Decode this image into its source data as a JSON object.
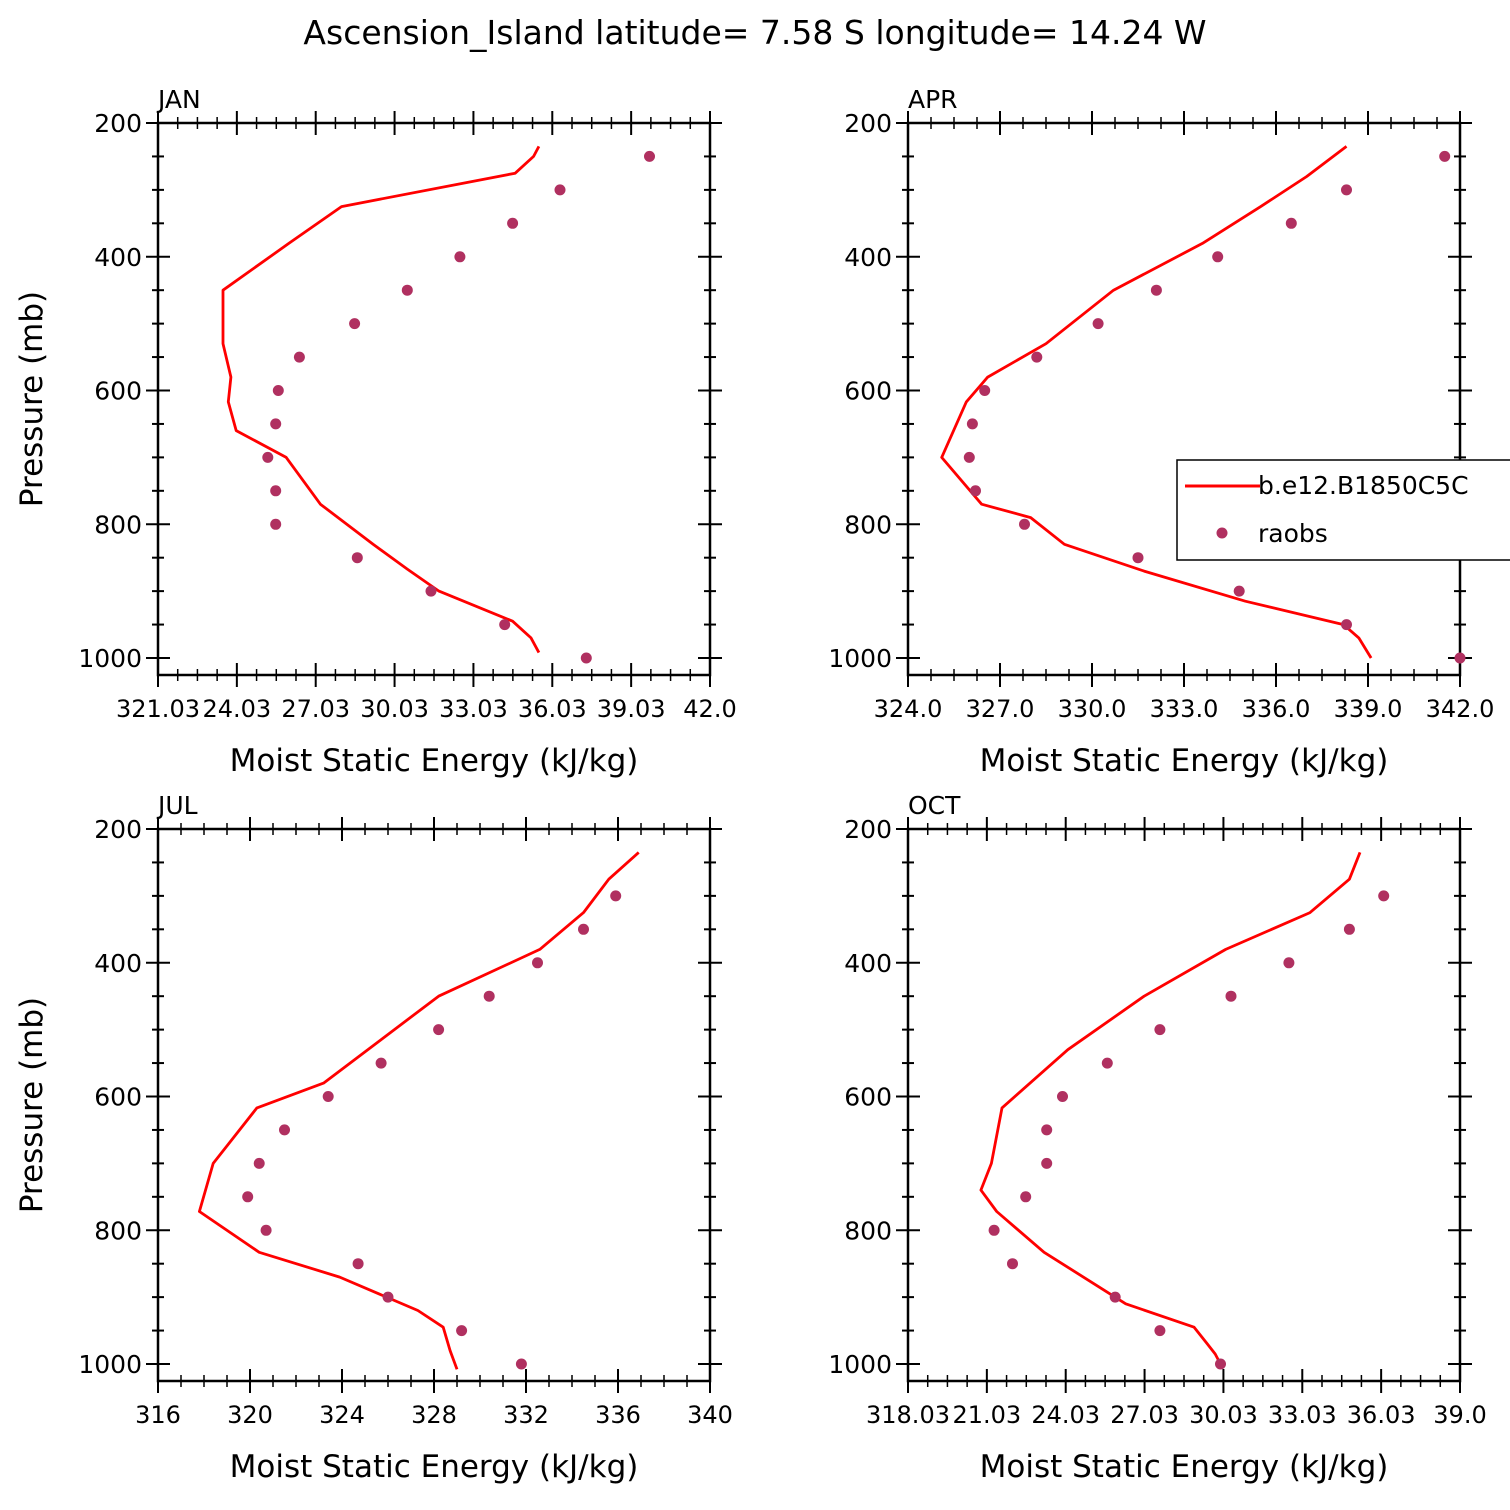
{
  "figure": {
    "title": "Ascension_Island  latitude= 7.58 S longitude= 14.24 W"
  },
  "legend": {
    "model_label": "b.e12.B1850C5C",
    "obs_label": "raobs",
    "model_color": "#ff0000",
    "obs_color": "#b03060"
  },
  "chart_data": [
    {
      "type": "line",
      "panel": "JAN",
      "title": "JAN",
      "xlabel": "Moist Static Energy (kJ/kg)",
      "ylabel": "Pressure (mb)",
      "xlim": [
        321.03,
        342.0
      ],
      "ylim": [
        1000,
        200
      ],
      "xticks": [
        321.03,
        324.03,
        327.03,
        330.03,
        333.03,
        336.03,
        339.03,
        342.0
      ],
      "xtick_labels": [
        "321.03",
        "24.03",
        "27.03",
        "30.03",
        "33.03",
        "36.03",
        "39.03",
        "42.0"
      ],
      "yticks": [
        200,
        400,
        600,
        800,
        1000
      ],
      "series": [
        {
          "name": "b.e12.B1850C5C",
          "kind": "line",
          "x": [
            335.5,
            335.2,
            334.5,
            331.7,
            330.5,
            329.2,
            327.2,
            325.9,
            324.0,
            323.7,
            323.8,
            323.5,
            323.5,
            326.0,
            328.0,
            334.6,
            335.3,
            335.5
          ],
          "y": [
            992,
            970,
            945,
            900,
            867,
            830,
            770,
            700,
            660,
            617,
            580,
            530,
            450,
            380,
            325,
            275,
            250,
            235
          ]
        },
        {
          "name": "raobs",
          "kind": "scatter",
          "x": [
            337.3,
            334.2,
            331.4,
            328.6,
            325.5,
            325.5,
            325.2,
            325.5,
            325.6,
            326.4,
            328.5,
            330.5,
            332.5,
            334.5,
            336.3,
            339.7
          ],
          "y": [
            1000,
            950,
            900,
            850,
            800,
            750,
            700,
            650,
            600,
            550,
            500,
            450,
            400,
            350,
            300,
            250
          ]
        }
      ]
    },
    {
      "type": "line",
      "panel": "APR",
      "title": "APR",
      "xlabel": "Moist Static Energy (kJ/kg)",
      "ylabel": "",
      "xlim": [
        324.0,
        342.0
      ],
      "ylim": [
        1000,
        200
      ],
      "xticks": [
        324.0,
        327.0,
        330.0,
        333.0,
        336.0,
        339.0,
        342.0
      ],
      "xtick_labels": [
        "324.0",
        "327.0",
        "330.0",
        "333.0",
        "336.0",
        "339.0",
        "342.0"
      ],
      "yticks": [
        200,
        400,
        600,
        800,
        1000
      ],
      "series": [
        {
          "name": "b.e12.B1850C5C",
          "kind": "line",
          "x": [
            339.1,
            338.7,
            338.2,
            335.0,
            331.7,
            329.1,
            328.0,
            326.4,
            325.1,
            325.9,
            326.6,
            328.5,
            330.7,
            333.6,
            335.5,
            337.0,
            338.3
          ],
          "y": [
            1000,
            970,
            950,
            915,
            870,
            830,
            790,
            770,
            700,
            617,
            580,
            530,
            450,
            380,
            325,
            280,
            235
          ]
        },
        {
          "name": "raobs",
          "kind": "scatter",
          "x": [
            342.0,
            338.3,
            334.8,
            331.5,
            327.8,
            326.2,
            326.0,
            326.1,
            326.5,
            328.2,
            330.2,
            332.1,
            334.1,
            336.5,
            338.3,
            341.5
          ],
          "y": [
            1000,
            950,
            900,
            850,
            800,
            750,
            700,
            650,
            600,
            550,
            500,
            450,
            400,
            350,
            300,
            250
          ]
        }
      ]
    },
    {
      "type": "line",
      "panel": "JUL",
      "title": "JUL",
      "xlabel": "Moist Static Energy (kJ/kg)",
      "ylabel": "Pressure (mb)",
      "xlim": [
        316,
        340
      ],
      "ylim": [
        1000,
        200
      ],
      "xticks": [
        316,
        320,
        324,
        328,
        332,
        336,
        340
      ],
      "xtick_labels": [
        "316",
        "320",
        "324",
        "328",
        "332",
        "336",
        "340"
      ],
      "yticks": [
        200,
        400,
        600,
        800,
        1000
      ],
      "series": [
        {
          "name": "b.e12.B1850C5C",
          "kind": "line",
          "x": [
            329.0,
            328.7,
            328.4,
            327.3,
            323.9,
            320.4,
            317.8,
            318.4,
            320.3,
            323.2,
            328.2,
            332.6,
            334.5,
            335.6,
            336.9
          ],
          "y": [
            1008,
            980,
            945,
            920,
            870,
            833,
            772,
            700,
            617,
            580,
            450,
            380,
            325,
            275,
            235
          ]
        },
        {
          "name": "raobs",
          "kind": "scatter",
          "x": [
            331.8,
            329.2,
            326.0,
            324.7,
            320.7,
            319.9,
            320.4,
            321.5,
            323.4,
            325.7,
            328.2,
            330.4,
            332.5,
            334.5,
            335.9
          ],
          "y": [
            1000,
            950,
            900,
            850,
            800,
            750,
            700,
            650,
            600,
            550,
            500,
            450,
            400,
            350,
            300
          ]
        }
      ]
    },
    {
      "type": "line",
      "panel": "OCT",
      "title": "OCT",
      "xlabel": "Moist Static Energy (kJ/kg)",
      "ylabel": "",
      "xlim": [
        318.03,
        339.0
      ],
      "ylim": [
        1000,
        200
      ],
      "xticks": [
        318.03,
        321.03,
        324.03,
        327.03,
        330.03,
        333.03,
        336.03,
        339.0
      ],
      "xtick_labels": [
        "318.03",
        "21.03",
        "24.03",
        "27.03",
        "30.03",
        "33.03",
        "36.03",
        "39.0"
      ],
      "yticks": [
        200,
        400,
        600,
        800,
        1000
      ],
      "series": [
        {
          "name": "b.e12.B1850C5C",
          "kind": "line",
          "x": [
            329.9,
            329.7,
            329.4,
            328.9,
            326.3,
            323.2,
            321.4,
            320.8,
            321.2,
            321.6,
            324.1,
            327.0,
            330.1,
            333.3,
            334.8,
            335.2
          ],
          "y": [
            1000,
            985,
            970,
            945,
            910,
            833,
            772,
            740,
            700,
            617,
            530,
            450,
            380,
            325,
            275,
            235
          ]
        },
        {
          "name": "raobs",
          "kind": "scatter",
          "x": [
            329.9,
            327.6,
            325.9,
            322.0,
            321.3,
            322.5,
            323.3,
            323.3,
            323.9,
            325.6,
            327.6,
            330.3,
            332.5,
            334.8,
            336.1
          ],
          "y": [
            1000,
            950,
            900,
            850,
            800,
            750,
            700,
            650,
            600,
            550,
            500,
            450,
            400,
            350,
            300
          ]
        }
      ]
    }
  ]
}
